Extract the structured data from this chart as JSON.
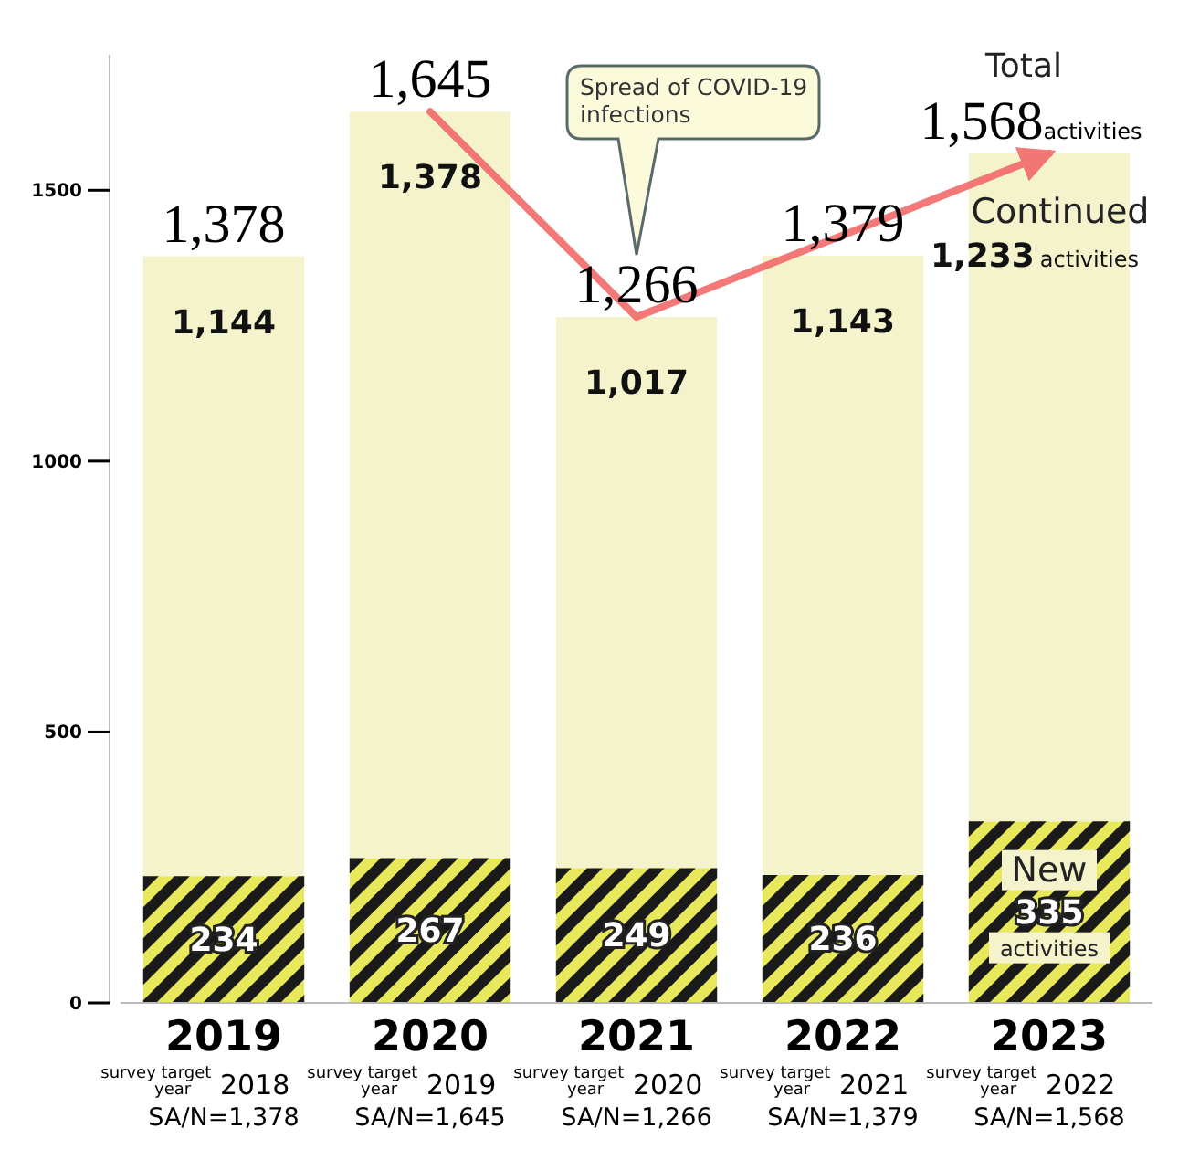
{
  "chart_data": {
    "type": "bar",
    "stacked": true,
    "x": [
      2019,
      2020,
      2021,
      2022,
      2023
    ],
    "series": [
      {
        "name": "New",
        "color": "#e8e85c",
        "values": [
          234,
          267,
          249,
          236,
          335
        ],
        "value_labels": [
          "234",
          "267",
          "249",
          "236",
          "335 activities"
        ]
      },
      {
        "name": "Continued",
        "color": "#f4f3cc",
        "values": [
          1144,
          1378,
          1017,
          1143,
          1233
        ],
        "value_labels": [
          "1,144",
          "1,378",
          "1,017",
          "1,143",
          "1,233 activities"
        ]
      },
      {
        "type": "line",
        "color": "#f26a6a",
        "x": [
          2020,
          2021,
          2023
        ],
        "values": [
          1645,
          1266,
          1568
        ]
      }
    ],
    "totals": [
      "1,378",
      "1,645",
      "1,266",
      "1,379",
      "1,568activities"
    ],
    "annotations": [
      "Spread of COVID-19 infections",
      "Total",
      "survey target year 2018\nSA/N=1,378",
      "survey target year 2019\nSA/N=1,645",
      "survey target year 2020\nSA/N=1,266",
      "survey target year 2021\nSA/N=1,379",
      "survey target year 2022\nSA/N=1,568"
    ],
    "xlim": [
      2018.5,
      2023.5
    ],
    "xticks": [
      2019,
      2020,
      2021,
      2022,
      2023
    ],
    "ylim": [
      0,
      1750
    ],
    "yticks": [
      0,
      500,
      1000,
      1500
    ],
    "grid": false,
    "legend": false,
    "marker": "none",
    "line_style": "solid"
  }
}
